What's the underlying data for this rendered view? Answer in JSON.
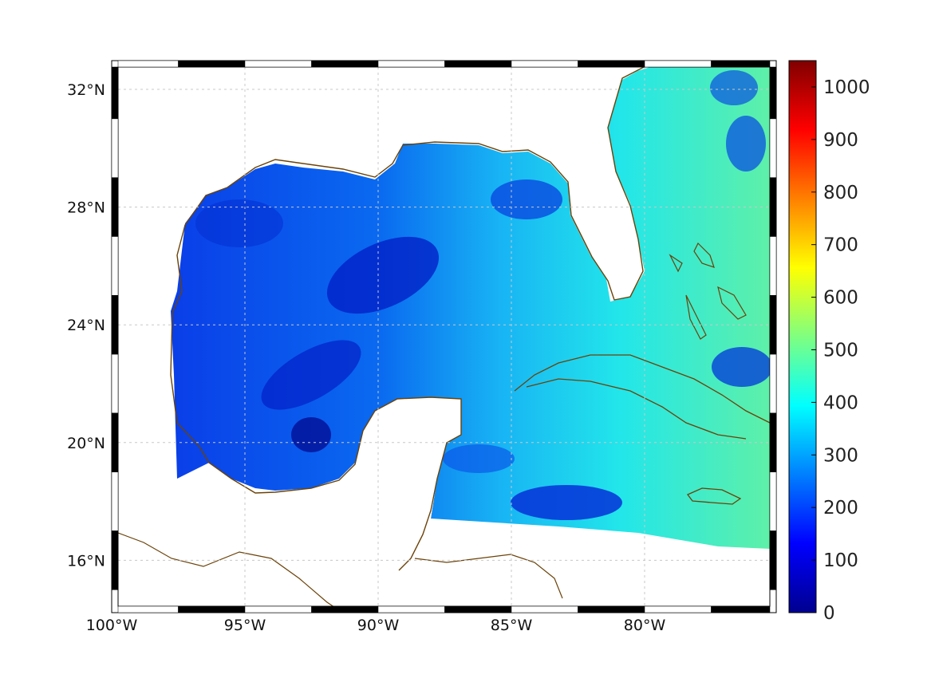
{
  "map": {
    "x_ticks": [
      {
        "lon": -100,
        "label": "100°W"
      },
      {
        "lon": -95,
        "label": "95°W"
      },
      {
        "lon": -90,
        "label": "90°W"
      },
      {
        "lon": -85,
        "label": "85°W"
      },
      {
        "lon": -80,
        "label": "80°W"
      }
    ],
    "y_ticks": [
      {
        "lat": 32,
        "label": "32°N"
      },
      {
        "lat": 28,
        "label": "28°N"
      },
      {
        "lat": 24,
        "label": "24°N"
      },
      {
        "lat": 20,
        "label": "20°N"
      },
      {
        "lat": 16,
        "label": "16°N"
      }
    ],
    "lon_range": [
      -100,
      -75
    ],
    "lat_range": [
      14.2,
      32.9
    ],
    "grid": true,
    "coast_color": "#6b4208",
    "colormap": "jet",
    "colorbar": {
      "range": [
        0,
        1050
      ],
      "ticks": [
        {
          "value": 0,
          "label": "0"
        },
        {
          "value": 100,
          "label": "100"
        },
        {
          "value": 200,
          "label": "200"
        },
        {
          "value": 300,
          "label": "300"
        },
        {
          "value": 400,
          "label": "400"
        },
        {
          "value": 500,
          "label": "500"
        },
        {
          "value": 600,
          "label": "600"
        },
        {
          "value": 700,
          "label": "700"
        },
        {
          "value": 800,
          "label": "800"
        },
        {
          "value": 900,
          "label": "900"
        },
        {
          "value": 1000,
          "label": "1000"
        }
      ]
    }
  }
}
